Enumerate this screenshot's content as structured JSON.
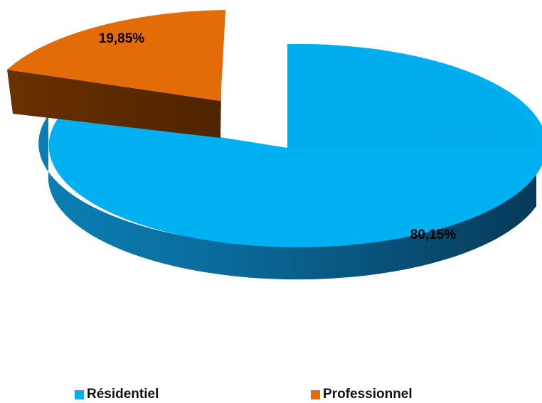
{
  "chart_data": {
    "type": "pie",
    "style": "3d-exploded",
    "categories": [
      "Résidentiel",
      "Professionnel"
    ],
    "values": [
      80.15,
      19.85
    ],
    "data_labels": [
      "80,15%",
      "19,85%"
    ],
    "colors": {
      "Résidentiel": "#00b0f0",
      "Professionnel": "#e36c09"
    },
    "legend_position": "bottom",
    "exploded_slice": "Professionnel"
  }
}
